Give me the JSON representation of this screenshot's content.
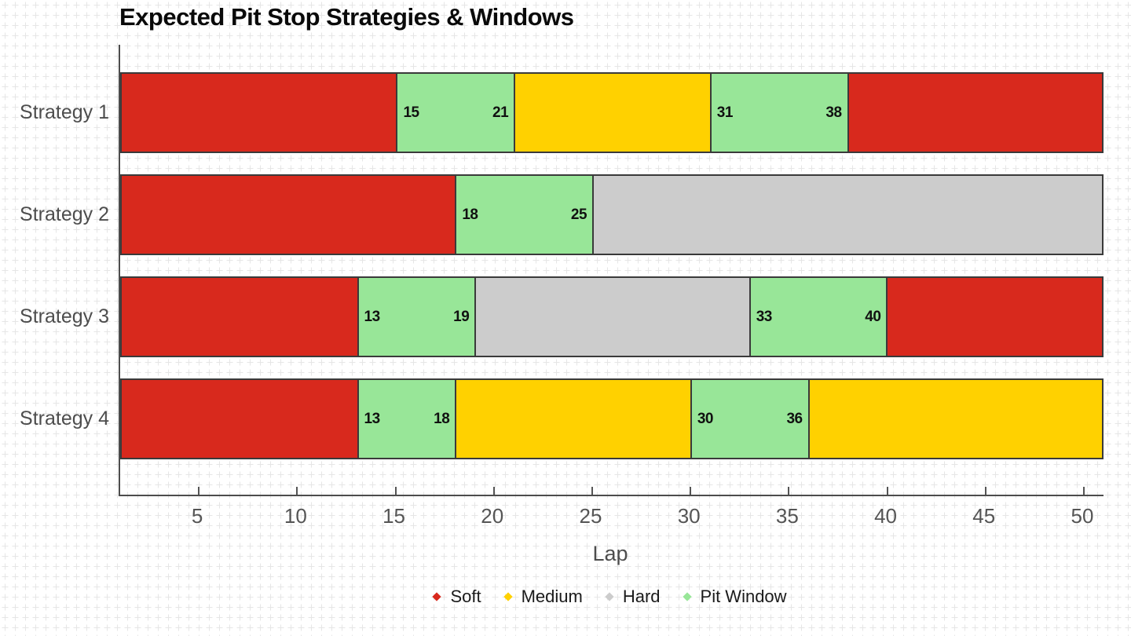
{
  "chart_data": {
    "type": "bar",
    "variant": "horizontal-stacked-timeline",
    "title": "Expected Pit Stop Strategies & Windows",
    "xlabel": "Lap",
    "xlim": [
      1,
      51
    ],
    "xticks": [
      5,
      10,
      15,
      20,
      25,
      30,
      35,
      40,
      45,
      50
    ],
    "grid": "fine light-gray graph-paper cross grid on white background",
    "grid_color": "#e6e6e6",
    "axis_color": "#4d4d4d",
    "segment_border_color": "#3a3a3a",
    "legend_position": "bottom-center",
    "compounds": {
      "soft": {
        "label": "Soft",
        "color": "#d8291d"
      },
      "medium": {
        "label": "Medium",
        "color": "#ffd100"
      },
      "hard": {
        "label": "Hard",
        "color": "#cccccc"
      },
      "pit_window": {
        "label": "Pit Window",
        "color": "#98e698"
      }
    },
    "legend": [
      "soft",
      "medium",
      "hard",
      "pit_window"
    ],
    "rows": [
      {
        "label": "Strategy 1",
        "segments": [
          {
            "type": "soft",
            "start": 1,
            "end": 15
          },
          {
            "type": "pit_window",
            "start": 15,
            "end": 21,
            "start_label": "15",
            "end_label": "21"
          },
          {
            "type": "medium",
            "start": 21,
            "end": 31
          },
          {
            "type": "pit_window",
            "start": 31,
            "end": 38,
            "start_label": "31",
            "end_label": "38"
          },
          {
            "type": "soft",
            "start": 38,
            "end": 51
          }
        ]
      },
      {
        "label": "Strategy 2",
        "segments": [
          {
            "type": "soft",
            "start": 1,
            "end": 18
          },
          {
            "type": "pit_window",
            "start": 18,
            "end": 25,
            "start_label": "18",
            "end_label": "25"
          },
          {
            "type": "hard",
            "start": 25,
            "end": 51
          }
        ]
      },
      {
        "label": "Strategy 3",
        "segments": [
          {
            "type": "soft",
            "start": 1,
            "end": 13
          },
          {
            "type": "pit_window",
            "start": 13,
            "end": 19,
            "start_label": "13",
            "end_label": "19"
          },
          {
            "type": "hard",
            "start": 19,
            "end": 33
          },
          {
            "type": "pit_window",
            "start": 33,
            "end": 40,
            "start_label": "33",
            "end_label": "40"
          },
          {
            "type": "soft",
            "start": 40,
            "end": 51
          }
        ]
      },
      {
        "label": "Strategy 4",
        "segments": [
          {
            "type": "soft",
            "start": 1,
            "end": 13
          },
          {
            "type": "pit_window",
            "start": 13,
            "end": 18,
            "start_label": "13",
            "end_label": "18"
          },
          {
            "type": "medium",
            "start": 18,
            "end": 30
          },
          {
            "type": "pit_window",
            "start": 30,
            "end": 36,
            "start_label": "30",
            "end_label": "36"
          },
          {
            "type": "medium",
            "start": 36,
            "end": 51
          }
        ]
      }
    ]
  }
}
